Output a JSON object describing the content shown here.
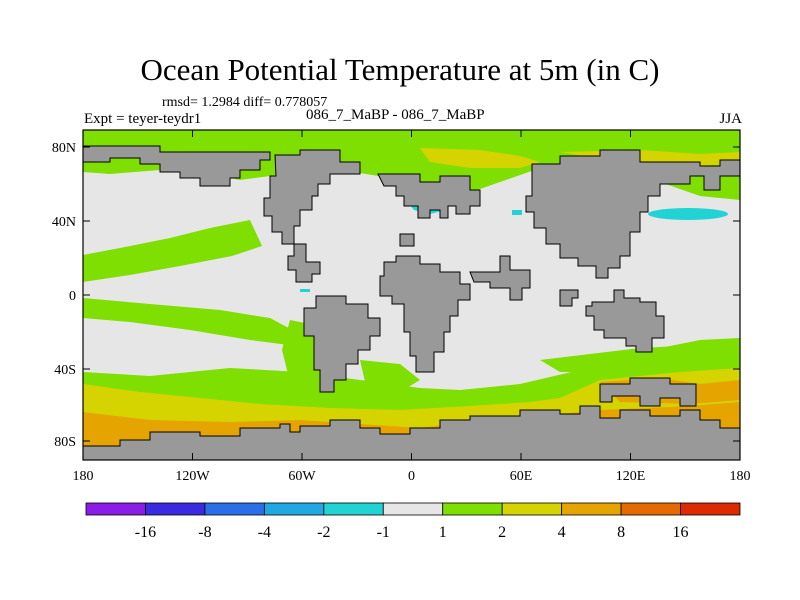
{
  "title": "Ocean Potential Temperature at 5m (in C)",
  "stats": "rmsd= 1.2984  diff= 0.778057",
  "expt_label": "Expt = teyer-teydr1",
  "cases_label": "086_7_MaBP - 086_7_MaBP",
  "season": "JJA",
  "y_ticks": [
    "80N",
    "40N",
    "0",
    "40S",
    "80S"
  ],
  "x_ticks": [
    "180",
    "120W",
    "60W",
    "0",
    "60E",
    "120E",
    "180"
  ],
  "colorbar": {
    "labels": [
      "-16",
      "-8",
      "-4",
      "-2",
      "-1",
      "1",
      "2",
      "4",
      "8",
      "16"
    ],
    "colors": [
      "#8a1ee6",
      "#3a2be0",
      "#2a6fe8",
      "#1fa9e0",
      "#22d3d3",
      "#e6e6e6",
      "#7fdf00",
      "#d6d400",
      "#e6a400",
      "#e66a00",
      "#dd2a00"
    ]
  },
  "colors": {
    "land": "#999999",
    "background_anomaly": "#e6e6e6",
    "green": "#7fdf00",
    "yellow": "#d6d400",
    "orange": "#e6a400",
    "cyan": "#22d3d3"
  }
}
